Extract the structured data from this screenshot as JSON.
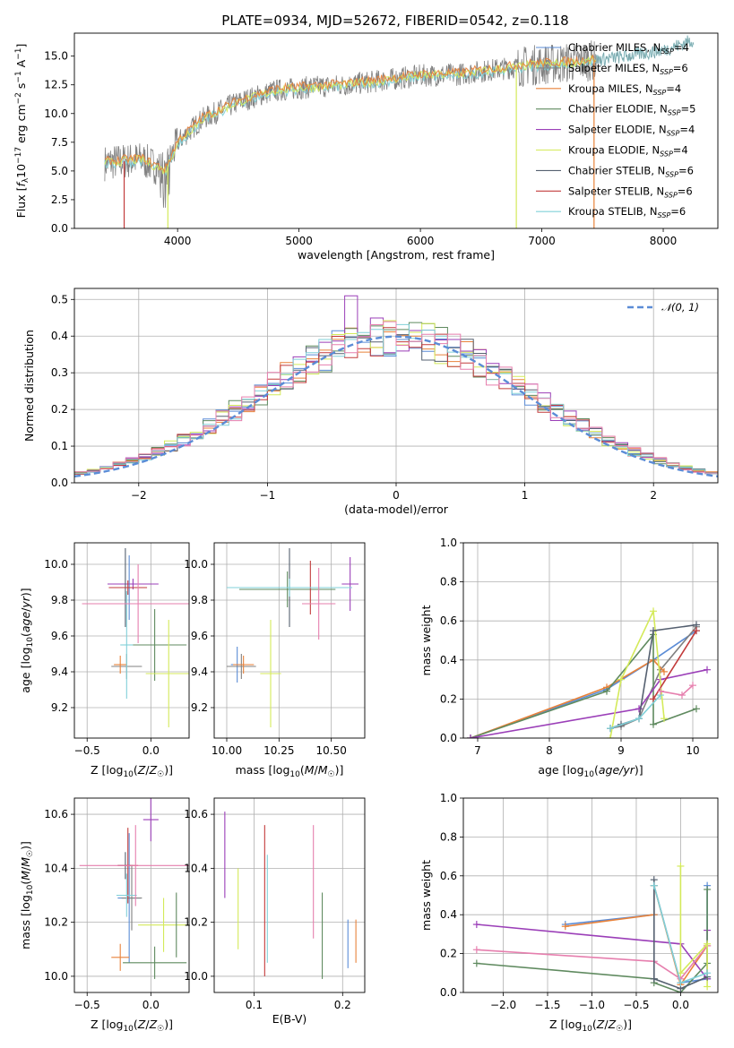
{
  "title": "PLATE=0934, MJD=52672, FIBERID=0542, z=0.118",
  "colors": {
    "Chabrier MILES": "#5b8cd6",
    "Salpeter MILES": "#808080",
    "Kroupa MILES": "#e8823a",
    "Chabrier ELODIE": "#5f8a5f",
    "Salpeter ELODIE": "#9b3fb8",
    "Kroupa ELODIE": "#d4ea5a",
    "Chabrier STELIB": "#556070",
    "Salpeter STELIB": "#c23b3b",
    "Kroupa STELIB": "#80d0d8",
    "extra_pink": "#e67fae",
    "data": "#808080",
    "normal": "#5b8cd6"
  },
  "chart_data": [
    {
      "id": "spectrum",
      "type": "line",
      "title": "PLATE=0934, MJD=52672, FIBERID=0542, z=0.118",
      "xlabel": "wavelength [Angstrom, rest frame]",
      "ylabel": "Flux [f_λ 10^-17 erg cm^-2 s^-1 A^-1]",
      "xlim": [
        3150,
        8450
      ],
      "ylim": [
        0,
        17
      ],
      "xticks": [
        "4000",
        "5000",
        "6000",
        "7000",
        "8000"
      ],
      "yticks": [
        "0.0",
        "2.5",
        "5.0",
        "7.5",
        "10.0",
        "12.5",
        "15.0"
      ],
      "grid": false,
      "legend_position": "top-right",
      "legend": [
        {
          "name": "Chabrier MILES",
          "n": "4"
        },
        {
          "name": "Salpeter MILES",
          "n": "6"
        },
        {
          "name": "Kroupa MILES",
          "n": "4"
        },
        {
          "name": "Chabrier ELODIE",
          "n": "5"
        },
        {
          "name": "Salpeter ELODIE",
          "n": "4"
        },
        {
          "name": "Kroupa ELODIE",
          "n": "4"
        },
        {
          "name": "Chabrier STELIB",
          "n": "6"
        },
        {
          "name": "Salpeter STELIB",
          "n": "6"
        },
        {
          "name": "Kroupa STELIB",
          "n": "6"
        }
      ],
      "continuum": [
        [
          3400,
          5.7
        ],
        [
          3700,
          6.0
        ],
        [
          3900,
          5.0
        ],
        [
          4000,
          7.5
        ],
        [
          4200,
          9.5
        ],
        [
          4500,
          11.0
        ],
        [
          4800,
          12.0
        ],
        [
          5100,
          12.3
        ],
        [
          5400,
          12.5
        ],
        [
          5700,
          12.9
        ],
        [
          6000,
          13.3
        ],
        [
          6300,
          13.4
        ],
        [
          6600,
          13.8
        ],
        [
          6900,
          14.2
        ],
        [
          7200,
          14.4
        ],
        [
          7400,
          14.6
        ],
        [
          7700,
          15.0
        ],
        [
          8000,
          15.5
        ],
        [
          8250,
          16.4
        ]
      ]
    },
    {
      "id": "residuals",
      "type": "histogram",
      "xlabel": "(data-model)/error",
      "ylabel": "Normed distribution",
      "xlim": [
        -2.5,
        2.5
      ],
      "ylim": [
        0,
        0.53
      ],
      "xticks": [
        "−2",
        "−1",
        "0",
        "1",
        "2"
      ],
      "yticks": [
        "0.0",
        "0.1",
        "0.2",
        "0.3",
        "0.4",
        "0.5"
      ],
      "grid": true,
      "legend_position": "top-right",
      "legend": [
        "𝒩(0, 1)"
      ],
      "bin_width": 0.1,
      "peak_outlier": {
        "x": -0.35,
        "y": 0.51
      }
    },
    {
      "id": "age_vs_Z",
      "type": "scatter",
      "xlabel": "Z [log10(Z/Z☉)]",
      "ylabel": "age [log10(age/yr)]",
      "xlim": [
        -0.6,
        0.3
      ],
      "ylim": [
        9.03,
        10.12
      ],
      "xticks": [
        "−0.5",
        "0.0"
      ],
      "yticks": [
        "9.2",
        "9.4",
        "9.6",
        "9.8",
        "10.0"
      ],
      "grid": true,
      "points": [
        {
          "c": "Chabrier MILES",
          "x": -0.17,
          "y": 9.87,
          "xe": 0.09,
          "ye": 0.18
        },
        {
          "c": "Salpeter MILES",
          "x": -0.19,
          "y": 9.43,
          "xe": 0.12,
          "ye": 0.07
        },
        {
          "c": "Kroupa MILES",
          "x": -0.24,
          "y": 9.44,
          "xe": 0.05,
          "ye": 0.05
        },
        {
          "c": "Chabrier ELODIE",
          "x": 0.03,
          "y": 9.55,
          "xe": 0.25,
          "ye": 0.2
        },
        {
          "c": "Salpeter ELODIE",
          "x": -0.14,
          "y": 9.89,
          "xe": 0.2,
          "ye": 0.03
        },
        {
          "c": "Kroupa ELODIE",
          "x": 0.14,
          "y": 9.39,
          "xe": 0.18,
          "ye": 0.3
        },
        {
          "c": "Chabrier STELIB",
          "x": -0.2,
          "y": 9.87,
          "xe": 0.1,
          "ye": 0.22
        },
        {
          "c": "Salpeter STELIB",
          "x": -0.18,
          "y": 9.87,
          "xe": 0.15,
          "ye": 0.04
        },
        {
          "c": "Kroupa STELIB",
          "x": -0.19,
          "y": 9.55,
          "xe": 0.05,
          "ye": 0.3
        },
        {
          "c": "extra_pink",
          "x": -0.1,
          "y": 9.78,
          "xe": 0.44,
          "ye": 0.22
        }
      ]
    },
    {
      "id": "age_vs_mass",
      "type": "scatter",
      "xlabel": "mass [log10(M/M☉)]",
      "ylabel": "",
      "xlim": [
        9.94,
        10.66
      ],
      "ylim": [
        9.03,
        10.12
      ],
      "xticks": [
        "10.00",
        "10.25",
        "10.50"
      ],
      "yticks": [
        "9.2",
        "9.4",
        "9.6",
        "9.8",
        "10.0"
      ],
      "grid": true,
      "points": [
        {
          "c": "Chabrier MILES",
          "x": 10.05,
          "y": 9.44,
          "xe": 0.03,
          "ye": 0.1
        },
        {
          "c": "Salpeter MILES",
          "x": 10.07,
          "y": 9.43,
          "xe": 0.07,
          "ye": 0.07
        },
        {
          "c": "Kroupa MILES",
          "x": 10.08,
          "y": 9.44,
          "xe": 0.05,
          "ye": 0.05
        },
        {
          "c": "Chabrier ELODIE",
          "x": 10.29,
          "y": 9.86,
          "xe": 0.23,
          "ye": 0.1
        },
        {
          "c": "Salpeter ELODIE",
          "x": 10.59,
          "y": 9.89,
          "xe": 0.04,
          "ye": 0.15
        },
        {
          "c": "Kroupa ELODIE",
          "x": 10.21,
          "y": 9.39,
          "xe": 0.05,
          "ye": 0.3
        },
        {
          "c": "Chabrier STELIB",
          "x": 10.3,
          "y": 9.87,
          "xe": 0.2,
          "ye": 0.22
        },
        {
          "c": "Salpeter STELIB",
          "x": 10.4,
          "y": 9.87,
          "xe": 0.05,
          "ye": 0.15
        },
        {
          "c": "Kroupa STELIB",
          "x": 10.3,
          "y": 9.87,
          "xe": 0.3,
          "ye": 0.05
        },
        {
          "c": "extra_pink",
          "x": 10.44,
          "y": 9.78,
          "xe": 0.08,
          "ye": 0.2
        }
      ]
    },
    {
      "id": "weight_vs_age",
      "type": "line",
      "xlabel": "age [log10(age/yr)]",
      "ylabel": "mass weight",
      "xlim": [
        6.8,
        10.35
      ],
      "ylim": [
        0,
        1
      ],
      "xticks": [
        "7",
        "8",
        "9",
        "10"
      ],
      "yticks": [
        "0.0",
        "0.2",
        "0.4",
        "0.6",
        "0.8",
        "1.0"
      ],
      "grid": true,
      "series": [
        {
          "c": "Chabrier MILES",
          "x": [
            6.9,
            8.8,
            9.45,
            10.05
          ],
          "y": [
            0.0,
            0.25,
            0.4,
            0.55
          ]
        },
        {
          "c": "Salpeter MILES",
          "x": [
            8.85,
            9.0,
            9.25,
            9.55,
            10.05
          ],
          "y": [
            0.05,
            0.06,
            0.1,
            0.35,
            0.57
          ]
        },
        {
          "c": "Kroupa MILES",
          "x": [
            6.9,
            8.8,
            9.45,
            9.6
          ],
          "y": [
            0.0,
            0.26,
            0.4,
            0.34
          ]
        },
        {
          "c": "Chabrier ELODIE",
          "x": [
            6.9,
            8.8,
            9.45,
            9.45,
            10.05
          ],
          "y": [
            0.0,
            0.24,
            0.53,
            0.07,
            0.15
          ]
        },
        {
          "c": "Salpeter ELODIE",
          "x": [
            6.9,
            9.25,
            9.55,
            10.2
          ],
          "y": [
            0.0,
            0.15,
            0.3,
            0.35
          ]
        },
        {
          "c": "Kroupa ELODIE",
          "x": [
            8.85,
            9.0,
            9.45,
            9.6
          ],
          "y": [
            0.0,
            0.3,
            0.65,
            0.1
          ]
        },
        {
          "c": "Chabrier STELIB",
          "x": [
            8.85,
            9.0,
            9.25,
            9.45,
            10.05
          ],
          "y": [
            0.05,
            0.07,
            0.1,
            0.55,
            0.58
          ]
        },
        {
          "c": "Salpeter STELIB",
          "x": [
            9.45,
            10.05
          ],
          "y": [
            0.2,
            0.55
          ]
        },
        {
          "c": "Kroupa STELIB",
          "x": [
            8.85,
            9.25,
            9.55
          ],
          "y": [
            0.05,
            0.1,
            0.22
          ]
        },
        {
          "c": "extra_pink",
          "x": [
            9.55,
            9.85,
            10.0
          ],
          "y": [
            0.24,
            0.22,
            0.27
          ]
        }
      ]
    },
    {
      "id": "mass_vs_Z",
      "type": "scatter",
      "xlabel": "Z [log10(Z/Z☉)]",
      "ylabel": "mass [log10(M/M☉)]",
      "xlim": [
        -0.6,
        0.3
      ],
      "ylim": [
        9.94,
        10.66
      ],
      "xticks": [
        "−0.5",
        "0.0"
      ],
      "yticks": [
        "10.0",
        "10.2",
        "10.4",
        "10.6"
      ],
      "grid": true,
      "points": [
        {
          "c": "Chabrier MILES",
          "x": -0.17,
          "y": 10.29,
          "xe": 0.09,
          "ye": 0.24
        },
        {
          "c": "Salpeter MILES",
          "x": -0.15,
          "y": 10.29,
          "xe": 0.08,
          "ye": 0.12
        },
        {
          "c": "Kroupa MILES",
          "x": -0.24,
          "y": 10.07,
          "xe": 0.07,
          "ye": 0.05
        },
        {
          "c": "Chabrier ELODIE",
          "x": 0.03,
          "y": 10.05,
          "xe": 0.25,
          "ye": 0.06
        },
        {
          "c": "Salpeter ELODIE",
          "x": 0.0,
          "y": 10.58,
          "xe": 0.06,
          "ye": 0.08
        },
        {
          "c": "Kroupa ELODIE",
          "x": 0.1,
          "y": 10.19,
          "xe": 0.2,
          "ye": 0.1
        },
        {
          "c": "Chabrier STELIB",
          "x": -0.2,
          "y": 10.41,
          "xe": 0.06,
          "ye": 0.05
        },
        {
          "c": "Salpeter STELIB",
          "x": -0.18,
          "y": 10.41,
          "xe": 0.08,
          "ye": 0.14
        },
        {
          "c": "Kroupa STELIB",
          "x": -0.19,
          "y": 10.3,
          "xe": 0.08,
          "ye": 0.08
        },
        {
          "c": "extra_pink",
          "x": -0.12,
          "y": 10.41,
          "xe": 0.44,
          "ye": 0.15
        },
        {
          "c": "Chabrier ELODIE",
          "x": 0.2,
          "y": 10.19,
          "xe": 0.0,
          "ye": 0.12
        }
      ]
    },
    {
      "id": "mass_vs_ebv",
      "type": "scatter",
      "xlabel": "E(B-V)",
      "ylabel": "",
      "xlim": [
        0.055,
        0.225
      ],
      "ylim": [
        9.94,
        10.66
      ],
      "xticks": [
        "0.1",
        "0.2"
      ],
      "yticks": [
        "10.0",
        "10.2",
        "10.4",
        "10.6"
      ],
      "grid": true,
      "points": [
        {
          "c": "Salpeter ELODIE",
          "x": 0.067,
          "y": 10.45,
          "ye": 0.16
        },
        {
          "c": "Kroupa ELODIE",
          "x": 0.082,
          "y": 10.25,
          "ye": 0.15
        },
        {
          "c": "Salpeter STELIB",
          "x": 0.112,
          "y": 10.28,
          "ye": 0.28
        },
        {
          "c": "Kroupa STELIB",
          "x": 0.115,
          "y": 10.25,
          "ye": 0.2
        },
        {
          "c": "extra_pink",
          "x": 0.167,
          "y": 10.35,
          "ye": 0.21
        },
        {
          "c": "Chabrier ELODIE",
          "x": 0.177,
          "y": 10.15,
          "ye": 0.16
        },
        {
          "c": "Chabrier MILES",
          "x": 0.206,
          "y": 10.12,
          "ye": 0.09
        },
        {
          "c": "Kroupa MILES",
          "x": 0.215,
          "y": 10.13,
          "ye": 0.08
        }
      ]
    },
    {
      "id": "weight_vs_Z",
      "type": "line",
      "xlabel": "Z [log10(Z/Z☉)]",
      "ylabel": "mass weight",
      "xlim": [
        -2.45,
        0.42
      ],
      "ylim": [
        0,
        1
      ],
      "xticks": [
        "−2.0",
        "−1.5",
        "−1.0",
        "−0.5",
        "0.0"
      ],
      "yticks": [
        "0.0",
        "0.2",
        "0.4",
        "0.6",
        "0.8",
        "1.0"
      ],
      "grid": true,
      "series": [
        {
          "c": "Chabrier MILES",
          "x": [
            -1.3,
            -0.3,
            -0.3,
            0.0,
            0.3,
            0.3
          ],
          "y": [
            0.35,
            0.4,
            0.55,
            0.05,
            0.07,
            0.55
          ]
        },
        {
          "c": "Kroupa MILES",
          "x": [
            -1.3,
            -0.3,
            -0.3,
            0.0,
            0.3
          ],
          "y": [
            0.34,
            0.4,
            0.55,
            0.04,
            0.24
          ]
        },
        {
          "c": "Salpeter ELODIE",
          "x": [
            -2.3,
            0.0,
            0.3,
            0.3
          ],
          "y": [
            0.35,
            0.25,
            0.07,
            0.32
          ]
        },
        {
          "c": "Chabrier ELODIE",
          "x": [
            -2.3,
            -0.3,
            -0.3,
            0.0,
            0.3,
            0.3
          ],
          "y": [
            0.15,
            0.07,
            0.05,
            0.0,
            0.15,
            0.53
          ]
        },
        {
          "c": "extra_pink",
          "x": [
            -2.3,
            -0.3,
            0.0,
            0.3
          ],
          "y": [
            0.22,
            0.16,
            0.07,
            0.24
          ]
        },
        {
          "c": "Kroupa ELODIE",
          "x": [
            0.0,
            0.0,
            0.3,
            0.3
          ],
          "y": [
            0.65,
            0.1,
            0.25,
            0.03
          ]
        },
        {
          "c": "Chabrier STELIB",
          "x": [
            -0.3,
            -0.3,
            0.0,
            0.3
          ],
          "y": [
            0.58,
            0.07,
            0.02,
            0.08
          ]
        },
        {
          "c": "Kroupa STELIB",
          "x": [
            -0.3,
            0.0,
            0.3
          ],
          "y": [
            0.55,
            0.05,
            0.1
          ]
        }
      ]
    }
  ]
}
